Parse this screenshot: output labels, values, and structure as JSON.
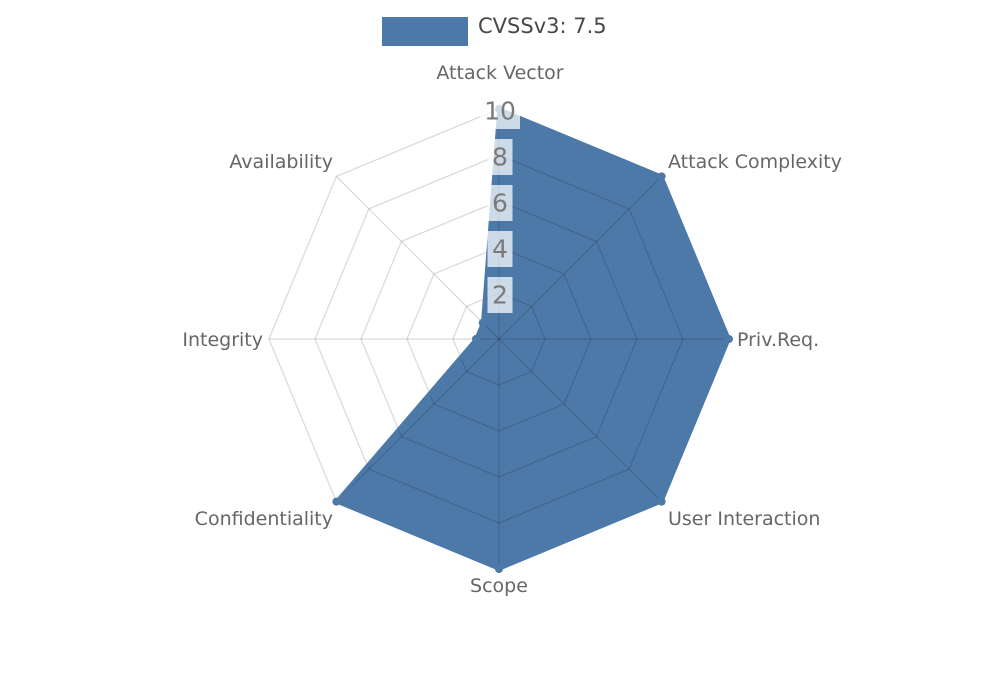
{
  "page": {
    "background_color": "#ffffff"
  },
  "legend": {
    "label": "CVSSv3: 7.5",
    "swatch_color": "#4D79A8",
    "position": "top"
  },
  "chart_data": {
    "type": "radar",
    "title": "CVSSv3: 7.5",
    "categories": [
      "Attack Vector",
      "Attack Complexity",
      "Priv.Req.",
      "User Interaction",
      "Scope",
      "Confidentiality",
      "Integrity",
      "Availability"
    ],
    "series": [
      {
        "name": "CVSSv3: 7.5",
        "values": [
          10,
          10,
          10,
          10,
          10,
          10,
          1,
          1
        ]
      }
    ],
    "radial_ticks": [
      2,
      4,
      6,
      8,
      10
    ],
    "rlim": [
      0,
      10
    ],
    "start_axis": "top",
    "direction": "clockwise",
    "grid": true,
    "legend_position": "top",
    "colors": {
      "series_fill": "#4D79A8",
      "series_stroke": "#4D79A8",
      "grid_line": "rgba(0,0,0,0.14)",
      "tick_label": "#7a7a7a",
      "tick_backdrop": "rgba(255,255,255,0.72)",
      "axis_label": "#666666",
      "legend_text": "#484848"
    }
  }
}
